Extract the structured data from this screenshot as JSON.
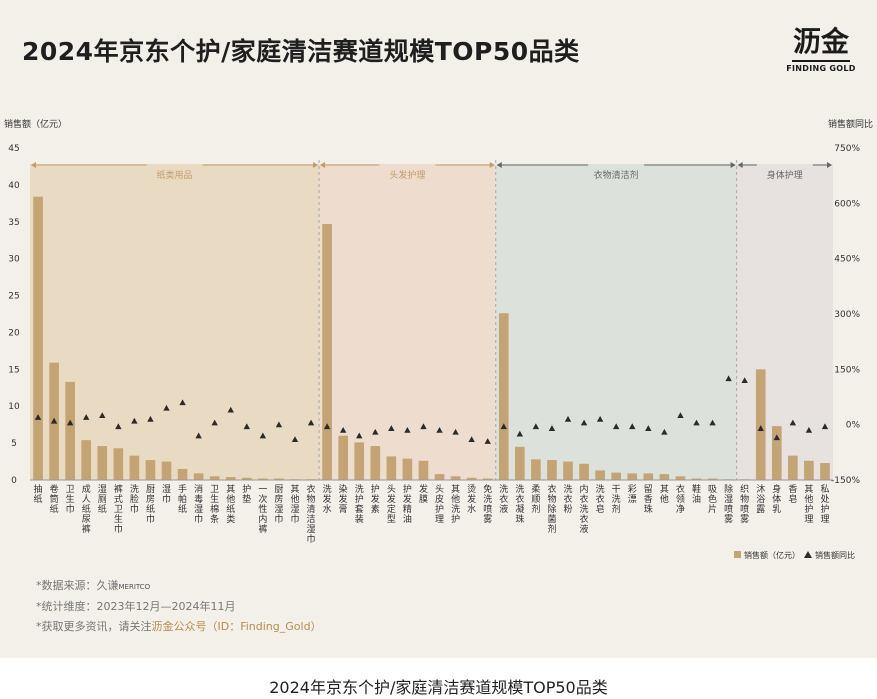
{
  "title": "2024年京东个护/家庭清洁赛道规模TOP50品类",
  "caption": "2024年京东个护/家庭清洁赛道规模TOP50品类",
  "logo": {
    "cn": "沥金",
    "en": "FINDING GOLD"
  },
  "notes": {
    "source_label": "*数据来源：久谦",
    "source_brand": "MERITCO",
    "period": "*统计维度：2023年12月—2024年11月",
    "more_prefix": "*获取更多资讯，请关注",
    "more_highlight": "沥金公众号（ID：Finding_Gold）"
  },
  "colors": {
    "bar": "#c4a374",
    "triangle": "#2b2b2b",
    "group_colors": [
      "#e6d4b6",
      "#ecd7c6",
      "#d4ddd6",
      "#e3dedb"
    ],
    "label_colors": [
      "#c49a67",
      "#c49a67",
      "#666666",
      "#666666"
    ]
  },
  "chart_data": {
    "type": "bar",
    "ylabel": "销售额（亿元）",
    "y2label": "销售额同比",
    "ylim": [
      0,
      45
    ],
    "yticks": [
      "0",
      "5",
      "10",
      "15",
      "20",
      "25",
      "30",
      "35",
      "40",
      "45"
    ],
    "y2lim": [
      -150,
      750
    ],
    "y2ticks": [
      "-150%",
      "0%",
      "150%",
      "300%",
      "450%",
      "600%",
      "750%"
    ],
    "legend": {
      "bar": "销售额（亿元）",
      "marker": "销售额同比"
    },
    "groups": [
      {
        "name": "纸类用品",
        "start": 0,
        "end": 17
      },
      {
        "name": "头发护理",
        "start": 18,
        "end": 28
      },
      {
        "name": "衣物清洁剂",
        "start": 29,
        "end": 43
      },
      {
        "name": "身体护理",
        "start": 44,
        "end": 49
      }
    ],
    "categories": [
      "抽纸",
      "卷筒纸",
      "卫生巾",
      "成人纸尿裤",
      "湿厕纸",
      "裤式卫生巾",
      "洗脸巾",
      "厨房纸巾",
      "湿巾",
      "手帕纸",
      "消毒湿巾",
      "卫生棉条",
      "其他纸类",
      "护垫",
      "一次性内裤",
      "厨房湿巾",
      "其他湿巾",
      "衣物清洁湿巾",
      "洗发水",
      "染发膏",
      "洗护套装",
      "护发素",
      "头发定型",
      "护发精油",
      "发膜",
      "头皮护理",
      "其他洗护",
      "烫发水",
      "免洗喷雾",
      "洗衣液",
      "洗衣凝珠",
      "柔顺剂",
      "衣物除菌剂",
      "洗衣粉",
      "内衣洗衣液",
      "洗衣皂",
      "干洗剂",
      "彩漂",
      "留香珠",
      "其他",
      "衣领净",
      "鞋油",
      "吸色片",
      "除湿喷雾",
      "织物喷雾",
      "沐浴露",
      "身体乳",
      "香皂",
      "其他护理",
      "私处护理"
    ],
    "series": [
      {
        "name": "销售额（亿元）",
        "values": [
          38.4,
          15.9,
          13.3,
          5.4,
          4.6,
          4.3,
          3.3,
          2.7,
          2.5,
          1.5,
          0.9,
          0.5,
          0.4,
          0.3,
          0.2,
          0.2,
          0.1,
          0.1,
          34.7,
          6.0,
          5.1,
          4.6,
          3.2,
          2.9,
          2.6,
          0.8,
          0.5,
          0.3,
          0.2,
          22.6,
          4.5,
          2.8,
          2.7,
          2.5,
          2.2,
          1.3,
          1.0,
          0.9,
          0.9,
          0.8,
          0.5,
          0.2,
          0.2,
          0.1,
          0.1,
          15.0,
          7.3,
          3.3,
          2.6,
          2.3
        ]
      },
      {
        "name": "销售额同比",
        "values": [
          20,
          10,
          5,
          20,
          25,
          -5,
          10,
          15,
          45,
          60,
          -30,
          5,
          40,
          -5,
          -30,
          0,
          -40,
          5,
          -5,
          -15,
          -30,
          -20,
          -10,
          -15,
          -5,
          -15,
          -20,
          -40,
          -45,
          -5,
          -25,
          -5,
          -10,
          15,
          5,
          15,
          -5,
          -5,
          -10,
          -20,
          25,
          5,
          5,
          125,
          120,
          -10,
          -35,
          5,
          -15,
          -5
        ]
      }
    ]
  }
}
